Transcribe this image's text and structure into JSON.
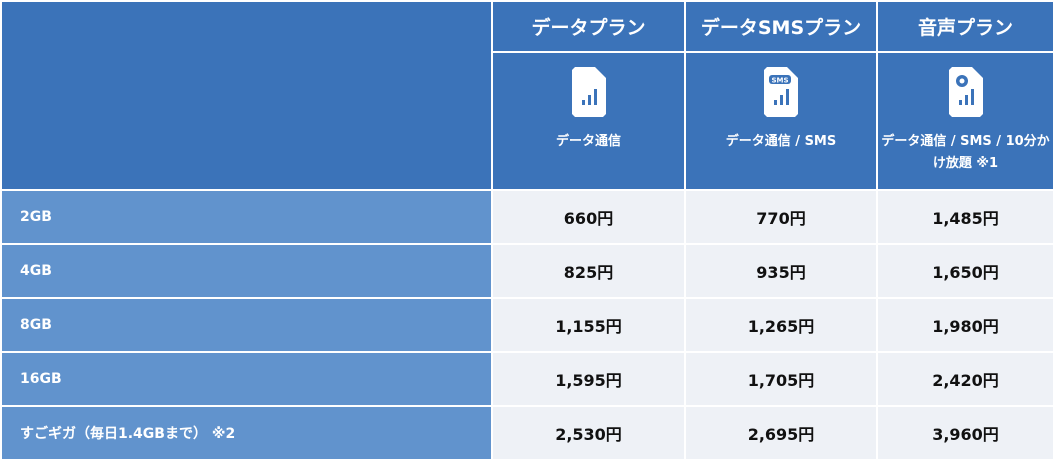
{
  "plans": [
    {
      "name": "データプラン",
      "features": "データ通信",
      "icon": "sim-data-icon"
    },
    {
      "name": "データSMSプラン",
      "features": "データ通信 / SMS",
      "icon": "sim-sms-icon"
    },
    {
      "name": "音声プラン",
      "features": "データ通信 / SMS / 10分かけ放題 ※1",
      "icon": "sim-voice-icon"
    }
  ],
  "rows": [
    {
      "label": "2GB",
      "prices": [
        "660円",
        "770円",
        "1,485円"
      ]
    },
    {
      "label": "4GB",
      "prices": [
        "825円",
        "935円",
        "1,650円"
      ]
    },
    {
      "label": "8GB",
      "prices": [
        "1,155円",
        "1,265円",
        "1,980円"
      ]
    },
    {
      "label": "16GB",
      "prices": [
        "1,595円",
        "1,705円",
        "2,420円"
      ]
    },
    {
      "label": "すごギガ（毎日1.4GBまで） ※2",
      "prices": [
        "2,530円",
        "2,695円",
        "3,960円"
      ]
    }
  ],
  "colors": {
    "header": "#3b73b9",
    "label": "#6193cd",
    "cell": "#eef1f6"
  }
}
